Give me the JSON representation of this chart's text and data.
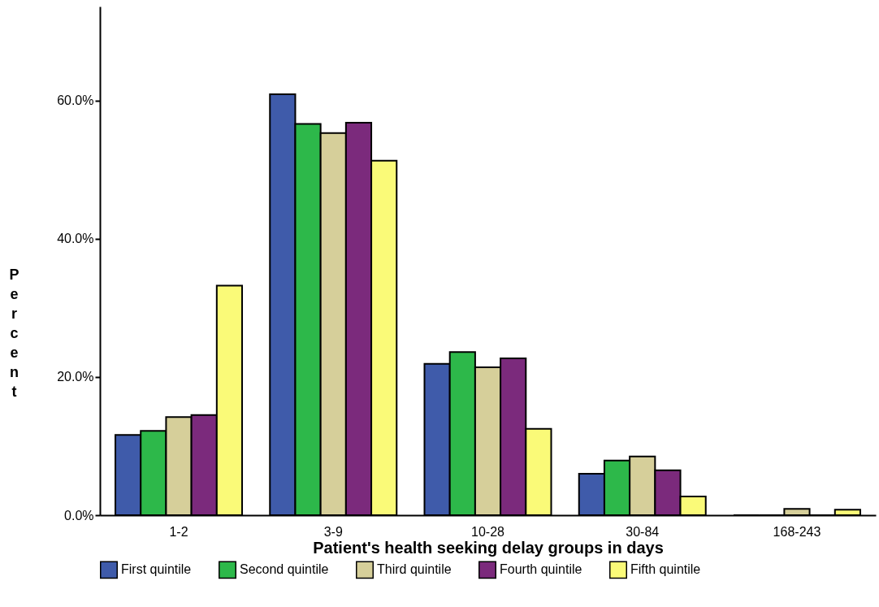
{
  "chart_data": {
    "type": "bar",
    "xlabel": "Patient's health seeking delay groups in days",
    "ylabel": "Percent",
    "categories": [
      "1-2",
      "3-9",
      "10-28",
      "30-84",
      "168-243"
    ],
    "series": [
      {
        "name": "First quintile",
        "color": "#3f5baa",
        "values": [
          11.6,
          60.9,
          21.9,
          6.0,
          0
        ]
      },
      {
        "name": "Second quintile",
        "color": "#2db84a",
        "values": [
          12.2,
          56.6,
          23.6,
          7.9,
          0
        ]
      },
      {
        "name": "Third quintile",
        "color": "#d6cf9a",
        "values": [
          14.2,
          55.3,
          21.4,
          8.5,
          0.9
        ]
      },
      {
        "name": "Fourth quintile",
        "color": "#7b2a7c",
        "values": [
          14.5,
          56.8,
          22.7,
          6.5,
          0
        ]
      },
      {
        "name": "Fifth quintile",
        "color": "#fafa78",
        "values": [
          33.2,
          51.3,
          12.5,
          2.7,
          0.8
        ]
      }
    ],
    "ylim": [
      0,
      73.6
    ],
    "yticks": [
      {
        "value": 0,
        "label": "0.0%"
      },
      {
        "value": 20,
        "label": "20.0%"
      },
      {
        "value": 40,
        "label": "40.0%"
      },
      {
        "value": 60,
        "label": "60.0%"
      }
    ],
    "grid": false,
    "legend": "bottom"
  }
}
